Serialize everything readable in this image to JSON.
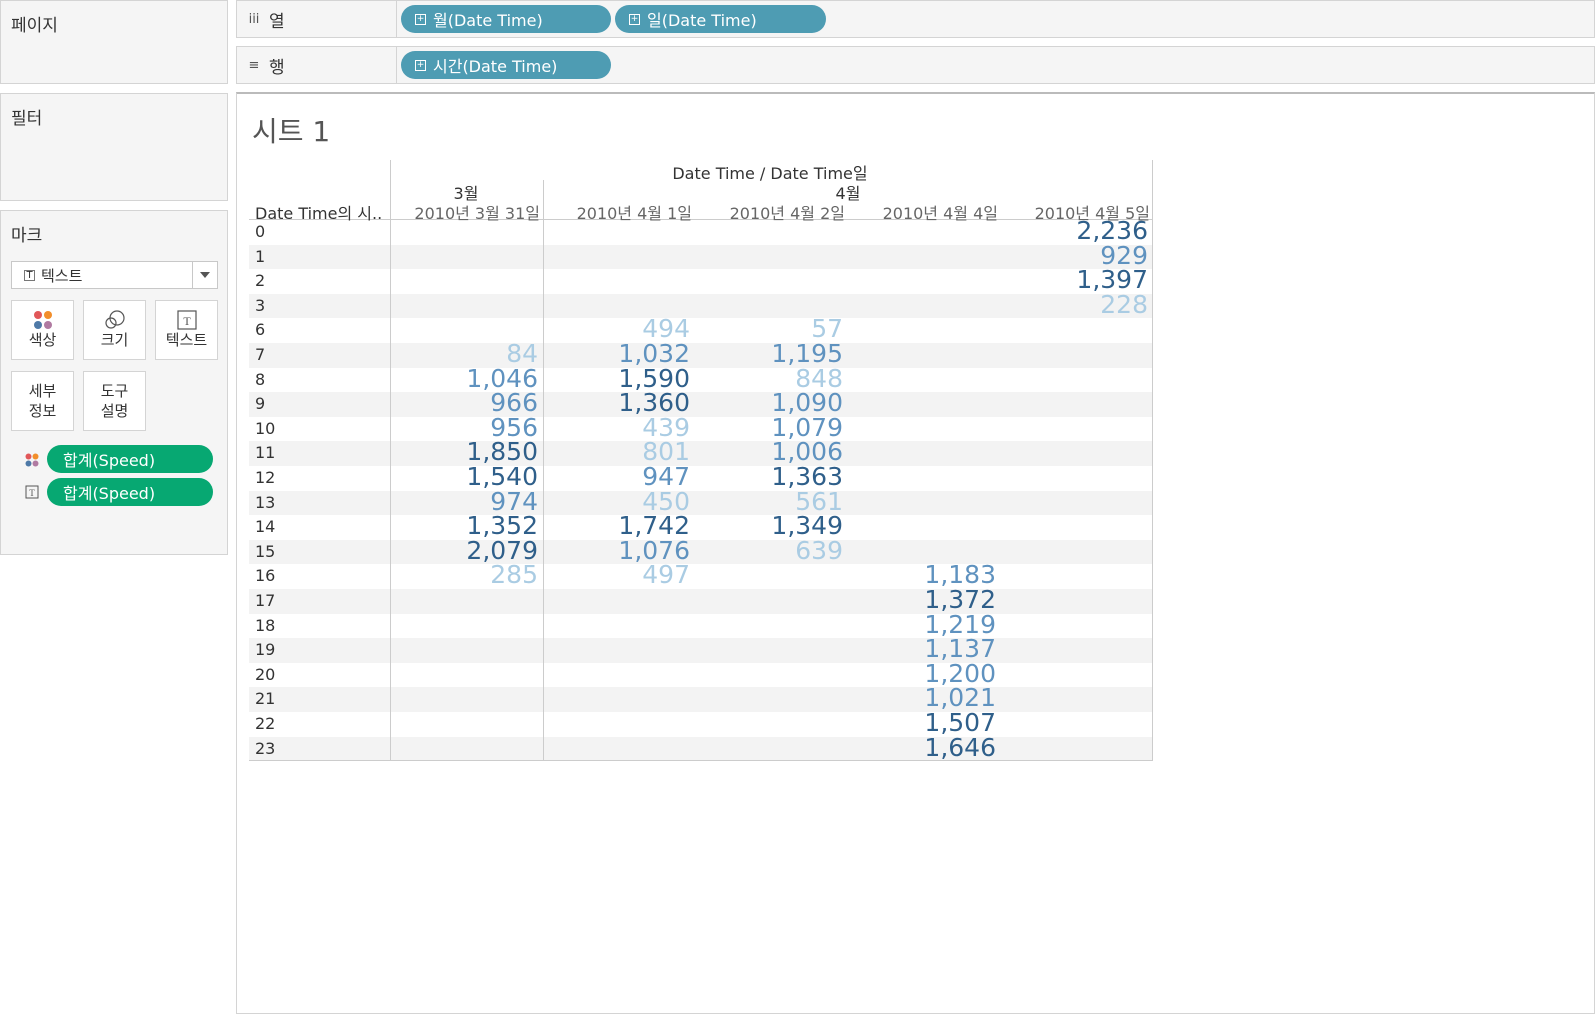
{
  "panels": {
    "pages_title": "페이지",
    "filters_title": "필터",
    "marks_title": "마크",
    "marks_type": "텍스트",
    "cards": [
      "색상",
      "크기",
      "텍스트",
      "세부\n정보",
      "도구\n설명"
    ],
    "mark_pills": [
      "합계(Speed)",
      "합계(Speed)"
    ]
  },
  "shelves": {
    "columns_label": "열",
    "rows_label": "행",
    "column_pills": [
      "월(Date Time)",
      "일(Date Time)"
    ],
    "row_pills": [
      "시간(Date Time)"
    ]
  },
  "sheet": {
    "title": "시트 1",
    "header_top": "Date Time / Date Time일",
    "row_header": "Date Time의 시..",
    "months": [
      "3월",
      "4월"
    ],
    "days": [
      "2010년 3월 31일",
      "2010년 4월 1일",
      "2010년 4월 2일",
      "2010년 4월 4일",
      "2010년 4월 5일"
    ],
    "colors": {
      "dark": "#2f5f8a",
      "mid": "#5f92bf",
      "light": "#aacce3"
    }
  },
  "table": {
    "rows": [
      "0",
      "1",
      "2",
      "3",
      "6",
      "7",
      "8",
      "9",
      "10",
      "11",
      "12",
      "13",
      "14",
      "15",
      "16",
      "17",
      "18",
      "19",
      "20",
      "21",
      "22",
      "23"
    ],
    "cells": [
      [
        "",
        "",
        "",
        "",
        "2,236"
      ],
      [
        "",
        "",
        "",
        "",
        "929"
      ],
      [
        "",
        "",
        "",
        "",
        "1,397"
      ],
      [
        "",
        "",
        "",
        "",
        "228"
      ],
      [
        "",
        "494",
        "57",
        "",
        ""
      ],
      [
        "84",
        "1,032",
        "1,195",
        "",
        ""
      ],
      [
        "1,046",
        "1,590",
        "848",
        "",
        ""
      ],
      [
        "966",
        "1,360",
        "1,090",
        "",
        ""
      ],
      [
        "956",
        "439",
        "1,079",
        "",
        ""
      ],
      [
        "1,850",
        "801",
        "1,006",
        "",
        ""
      ],
      [
        "1,540",
        "947",
        "1,363",
        "",
        ""
      ],
      [
        "974",
        "450",
        "561",
        "",
        ""
      ],
      [
        "1,352",
        "1,742",
        "1,349",
        "",
        ""
      ],
      [
        "2,079",
        "1,076",
        "639",
        "",
        ""
      ],
      [
        "285",
        "497",
        "",
        "1,183",
        ""
      ],
      [
        "",
        "",
        "",
        "1,372",
        ""
      ],
      [
        "",
        "",
        "",
        "1,219",
        ""
      ],
      [
        "",
        "",
        "",
        "1,137",
        ""
      ],
      [
        "",
        "",
        "",
        "1,200",
        ""
      ],
      [
        "",
        "",
        "",
        "1,021",
        ""
      ],
      [
        "",
        "",
        "",
        "1,507",
        ""
      ],
      [
        "",
        "",
        "",
        "1,646",
        ""
      ]
    ]
  }
}
